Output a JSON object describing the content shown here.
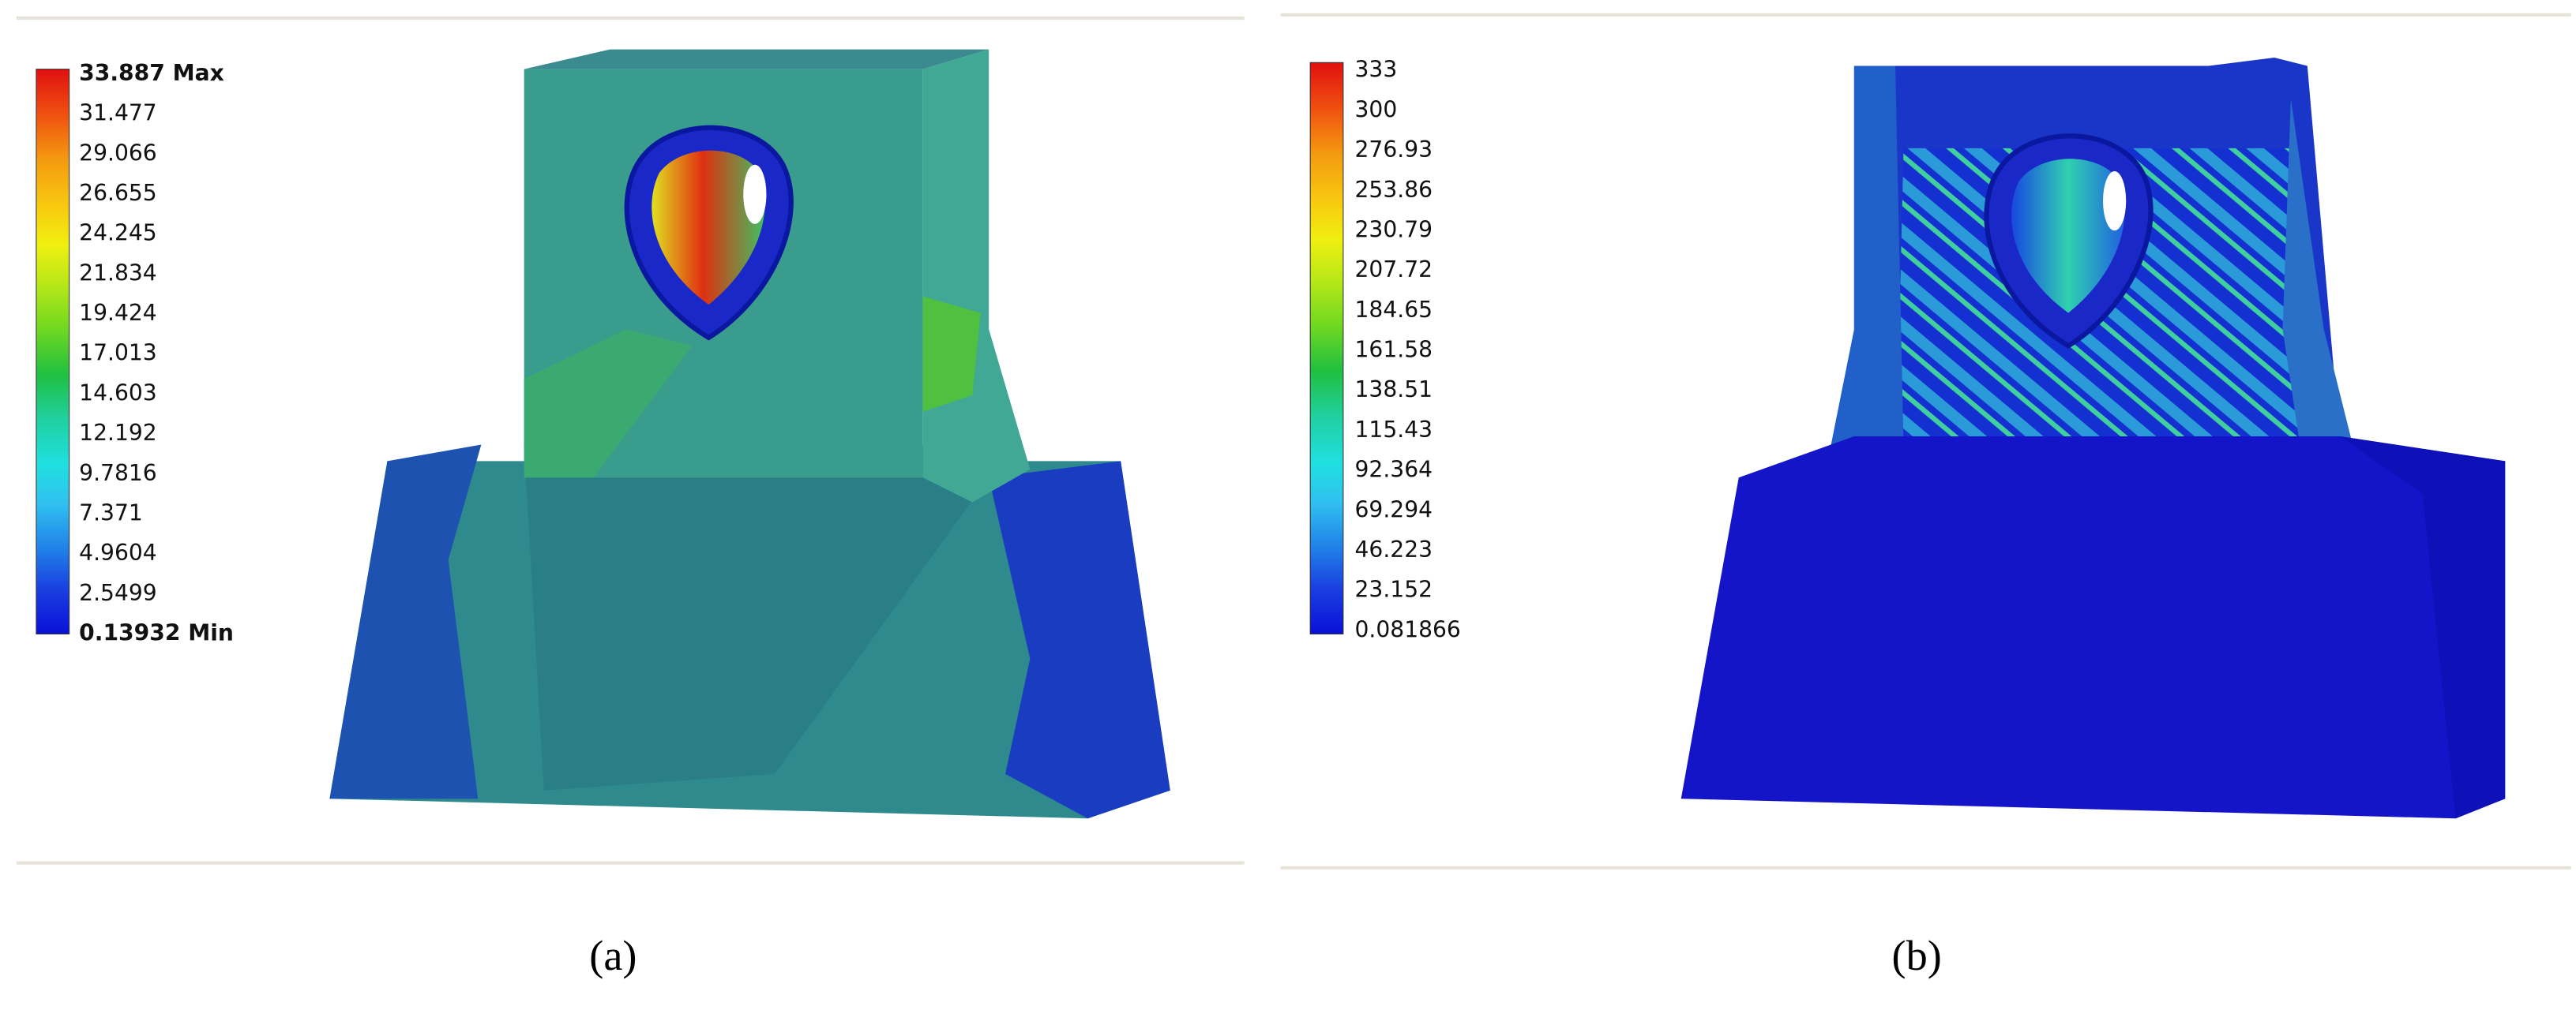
{
  "panels": [
    {
      "legend": [
        "33.887 Max",
        "31.477",
        "29.066",
        "26.655",
        "24.245",
        "21.834",
        "19.424",
        "17.013",
        "14.603",
        "12.192",
        "9.7816",
        "7.371",
        "4.9604",
        "2.5499",
        "0.13932 Min"
      ],
      "caption": "(a)"
    },
    {
      "legend": [
        "333",
        "300",
        "276.93",
        "253.86",
        "230.79",
        "207.72",
        "184.65",
        "161.58",
        "138.51",
        "115.43",
        "92.364",
        "69.294",
        "46.223",
        "23.152",
        "0.081866"
      ],
      "caption": "(b)"
    }
  ]
}
